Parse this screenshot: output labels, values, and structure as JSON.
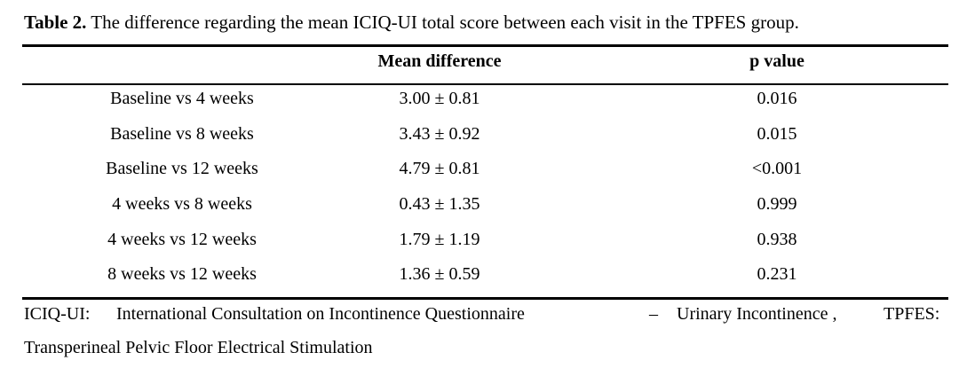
{
  "caption": {
    "label": "Table 2.",
    "text": " The difference regarding the mean ICIQ-UI total score between each visit in the TPFES group."
  },
  "table": {
    "headers": [
      "",
      "Mean difference",
      "p value"
    ],
    "rows": [
      [
        "Baseline vs 4 weeks",
        "3.00 ± 0.81",
        "0.016"
      ],
      [
        "Baseline vs 8 weeks",
        "3.43 ± 0.92",
        "0.015"
      ],
      [
        "Baseline vs 12 weeks",
        "4.79 ± 0.81",
        "<0.001"
      ],
      [
        "4 weeks vs 8 weeks",
        "0.43 ± 1.35",
        "0.999"
      ],
      [
        "4 weeks vs 12 weeks",
        "1.79 ± 1.19",
        "0.938"
      ],
      [
        "8 weeks vs 12 weeks",
        "1.36 ± 0.59",
        "0.231"
      ]
    ]
  },
  "footnote": {
    "abbr1": "ICIQ-UI:",
    "def1": "International Consultation on Incontinence Questionnaire",
    "dash": "–",
    "def1b": "Urinary Incontinence ,",
    "abbr2": "TPFES:",
    "def2": "Transperineal Pelvic Floor Electrical Stimulation"
  }
}
